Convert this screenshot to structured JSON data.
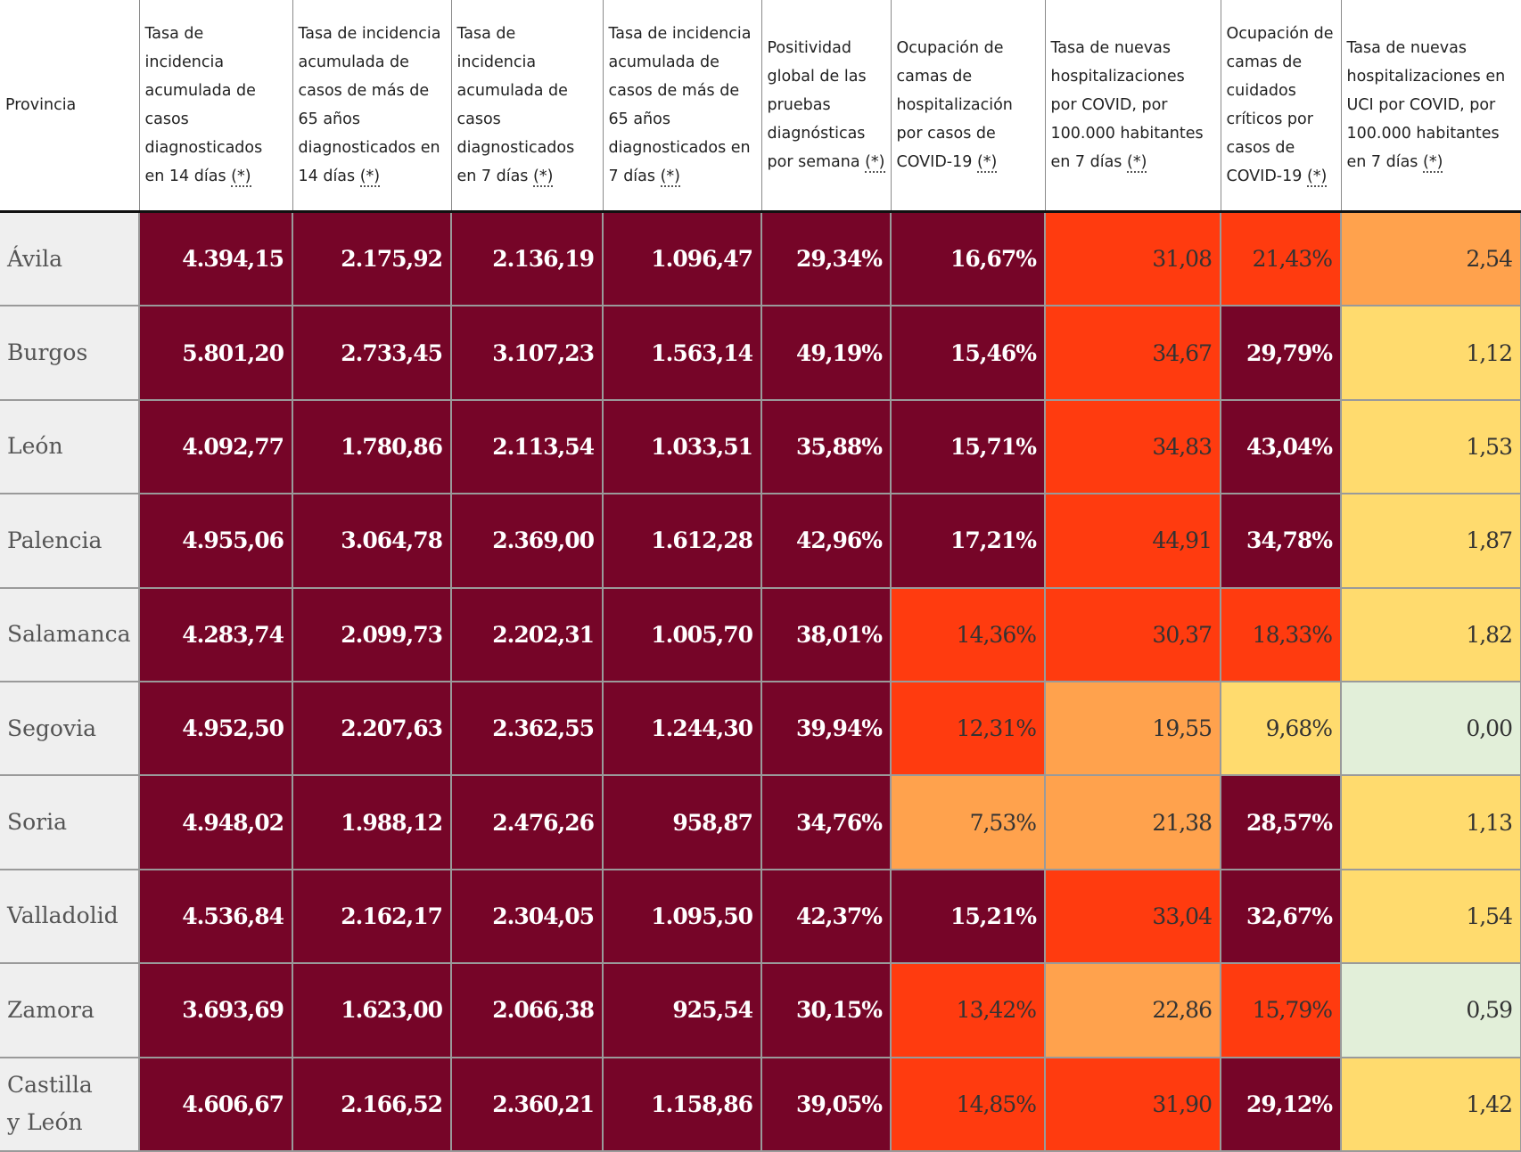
{
  "colors": {
    "dark": "#760528",
    "red": "#ff3b0f",
    "orange": "#ffa24d",
    "yellow": "#ffdb6e",
    "green": "#e2efd9"
  },
  "table": {
    "headers": [
      {
        "pre": "Provincia",
        "fn": ""
      },
      {
        "pre": "Tasa de incidencia acumulada de casos diagnosticados en 14 días ",
        "fn": "(*)"
      },
      {
        "pre": "Tasa de incidencia acumulada de casos de más de 65 años diagnosticados en 14 días ",
        "fn": "(*)"
      },
      {
        "pre": "Tasa de incidencia acumulada de casos diagnosticados en 7 días ",
        "fn": "(*)"
      },
      {
        "pre": "Tasa de incidencia acumulada de casos de más de 65 años diagnosticados en 7 días ",
        "fn": "(*)"
      },
      {
        "pre": "Positividad global de las pruebas diagnósticas por semana ",
        "fn": "(*)"
      },
      {
        "pre": "Ocupación de camas de hospitalización por casos de COVID-19 ",
        "fn": "(*)"
      },
      {
        "pre": "Tasa de nuevas hospitalizaciones por COVID, por 100.000 habitantes en 7 días ",
        "fn": "(*)"
      },
      {
        "pre": "Ocupación de camas de cuidados críticos por casos de COVID-19 ",
        "fn": "(*)"
      },
      {
        "pre": "Tasa de nuevas hospitalizaciones en UCI por COVID, por 100.000 habitantes en 7 días ",
        "fn": "(*)"
      }
    ],
    "rows": [
      {
        "name": "Ávila",
        "cells": [
          {
            "v": "4.394,15",
            "c": "dark"
          },
          {
            "v": "2.175,92",
            "c": "dark"
          },
          {
            "v": "2.136,19",
            "c": "dark"
          },
          {
            "v": "1.096,47",
            "c": "dark"
          },
          {
            "v": "29,34%",
            "c": "dark"
          },
          {
            "v": "16,67%",
            "c": "dark"
          },
          {
            "v": "31,08",
            "c": "red"
          },
          {
            "v": "21,43%",
            "c": "red"
          },
          {
            "v": "2,54",
            "c": "orange"
          }
        ]
      },
      {
        "name": "Burgos",
        "cells": [
          {
            "v": "5.801,20",
            "c": "dark"
          },
          {
            "v": "2.733,45",
            "c": "dark"
          },
          {
            "v": "3.107,23",
            "c": "dark"
          },
          {
            "v": "1.563,14",
            "c": "dark"
          },
          {
            "v": "49,19%",
            "c": "dark"
          },
          {
            "v": "15,46%",
            "c": "dark"
          },
          {
            "v": "34,67",
            "c": "red"
          },
          {
            "v": "29,79%",
            "c": "dark"
          },
          {
            "v": "1,12",
            "c": "yellow"
          }
        ]
      },
      {
        "name": "León",
        "cells": [
          {
            "v": "4.092,77",
            "c": "dark"
          },
          {
            "v": "1.780,86",
            "c": "dark"
          },
          {
            "v": "2.113,54",
            "c": "dark"
          },
          {
            "v": "1.033,51",
            "c": "dark"
          },
          {
            "v": "35,88%",
            "c": "dark"
          },
          {
            "v": "15,71%",
            "c": "dark"
          },
          {
            "v": "34,83",
            "c": "red"
          },
          {
            "v": "43,04%",
            "c": "dark"
          },
          {
            "v": "1,53",
            "c": "yellow"
          }
        ]
      },
      {
        "name": "Palencia",
        "cells": [
          {
            "v": "4.955,06",
            "c": "dark"
          },
          {
            "v": "3.064,78",
            "c": "dark"
          },
          {
            "v": "2.369,00",
            "c": "dark"
          },
          {
            "v": "1.612,28",
            "c": "dark"
          },
          {
            "v": "42,96%",
            "c": "dark"
          },
          {
            "v": "17,21%",
            "c": "dark"
          },
          {
            "v": "44,91",
            "c": "red"
          },
          {
            "v": "34,78%",
            "c": "dark"
          },
          {
            "v": "1,87",
            "c": "yellow"
          }
        ]
      },
      {
        "name": "Salamanca",
        "cells": [
          {
            "v": "4.283,74",
            "c": "dark"
          },
          {
            "v": "2.099,73",
            "c": "dark"
          },
          {
            "v": "2.202,31",
            "c": "dark"
          },
          {
            "v": "1.005,70",
            "c": "dark"
          },
          {
            "v": "38,01%",
            "c": "dark"
          },
          {
            "v": "14,36%",
            "c": "red"
          },
          {
            "v": "30,37",
            "c": "red"
          },
          {
            "v": "18,33%",
            "c": "red"
          },
          {
            "v": "1,82",
            "c": "yellow"
          }
        ]
      },
      {
        "name": "Segovia",
        "cells": [
          {
            "v": "4.952,50",
            "c": "dark"
          },
          {
            "v": "2.207,63",
            "c": "dark"
          },
          {
            "v": "2.362,55",
            "c": "dark"
          },
          {
            "v": "1.244,30",
            "c": "dark"
          },
          {
            "v": "39,94%",
            "c": "dark"
          },
          {
            "v": "12,31%",
            "c": "red"
          },
          {
            "v": "19,55",
            "c": "orange"
          },
          {
            "v": "9,68%",
            "c": "yellow"
          },
          {
            "v": "0,00",
            "c": "green"
          }
        ]
      },
      {
        "name": "Soria",
        "cells": [
          {
            "v": "4.948,02",
            "c": "dark"
          },
          {
            "v": "1.988,12",
            "c": "dark"
          },
          {
            "v": "2.476,26",
            "c": "dark"
          },
          {
            "v": "958,87",
            "c": "dark"
          },
          {
            "v": "34,76%",
            "c": "dark"
          },
          {
            "v": "7,53%",
            "c": "orange"
          },
          {
            "v": "21,38",
            "c": "orange"
          },
          {
            "v": "28,57%",
            "c": "dark"
          },
          {
            "v": "1,13",
            "c": "yellow"
          }
        ]
      },
      {
        "name": "Valladolid",
        "cells": [
          {
            "v": "4.536,84",
            "c": "dark"
          },
          {
            "v": "2.162,17",
            "c": "dark"
          },
          {
            "v": "2.304,05",
            "c": "dark"
          },
          {
            "v": "1.095,50",
            "c": "dark"
          },
          {
            "v": "42,37%",
            "c": "dark"
          },
          {
            "v": "15,21%",
            "c": "dark"
          },
          {
            "v": "33,04",
            "c": "red"
          },
          {
            "v": "32,67%",
            "c": "dark"
          },
          {
            "v": "1,54",
            "c": "yellow"
          }
        ]
      },
      {
        "name": "Zamora",
        "cells": [
          {
            "v": "3.693,69",
            "c": "dark"
          },
          {
            "v": "1.623,00",
            "c": "dark"
          },
          {
            "v": "2.066,38",
            "c": "dark"
          },
          {
            "v": "925,54",
            "c": "dark"
          },
          {
            "v": "30,15%",
            "c": "dark"
          },
          {
            "v": "13,42%",
            "c": "red"
          },
          {
            "v": "22,86",
            "c": "orange"
          },
          {
            "v": "15,79%",
            "c": "red"
          },
          {
            "v": "0,59",
            "c": "green"
          }
        ]
      },
      {
        "name": "Castilla y León",
        "cells": [
          {
            "v": "4.606,67",
            "c": "dark"
          },
          {
            "v": "2.166,52",
            "c": "dark"
          },
          {
            "v": "2.360,21",
            "c": "dark"
          },
          {
            "v": "1.158,86",
            "c": "dark"
          },
          {
            "v": "39,05%",
            "c": "dark"
          },
          {
            "v": "14,85%",
            "c": "red"
          },
          {
            "v": "31,90",
            "c": "red"
          },
          {
            "v": "29,12%",
            "c": "dark"
          },
          {
            "v": "1,42",
            "c": "yellow"
          }
        ]
      }
    ]
  }
}
